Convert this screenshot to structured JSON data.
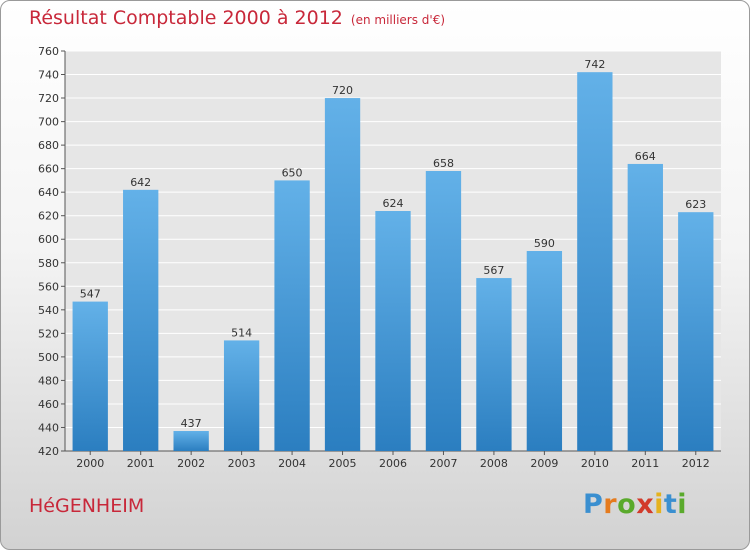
{
  "header": {
    "title": "Résultat Comptable 2000 à 2012",
    "subtitle": "(en milliers d'€)"
  },
  "footer": {
    "city": "HéGENHEIM",
    "logo_letters": [
      {
        "ch": "P",
        "color": "#3a8fd0"
      },
      {
        "ch": "r",
        "color": "#e57b1e"
      },
      {
        "ch": "o",
        "color": "#5aaa2c"
      },
      {
        "ch": "x",
        "color": "#d23b2b"
      },
      {
        "ch": "i",
        "color": "#e5b21e"
      },
      {
        "ch": "t",
        "color": "#3a8fd0"
      },
      {
        "ch": "i",
        "color": "#5aaa2c"
      }
    ]
  },
  "chart_data": {
    "type": "bar",
    "title": "Résultat Comptable 2000 à 2012",
    "subtitle": "(en milliers d'€)",
    "categories": [
      "2000",
      "2001",
      "2002",
      "2003",
      "2004",
      "2005",
      "2006",
      "2007",
      "2008",
      "2009",
      "2010",
      "2011",
      "2012"
    ],
    "values": [
      547,
      642,
      437,
      514,
      650,
      720,
      624,
      658,
      567,
      590,
      742,
      664,
      623
    ],
    "ylim": [
      420,
      760
    ],
    "yticks": [
      420,
      440,
      460,
      480,
      500,
      520,
      540,
      560,
      580,
      600,
      620,
      640,
      660,
      680,
      700,
      720,
      740,
      760
    ],
    "grid": true,
    "colors": {
      "bar_light": "#63b1e8",
      "bar_dark": "#2b7ec0",
      "grid": "#ffffff",
      "plot_bg": "#e6e6e6"
    }
  }
}
